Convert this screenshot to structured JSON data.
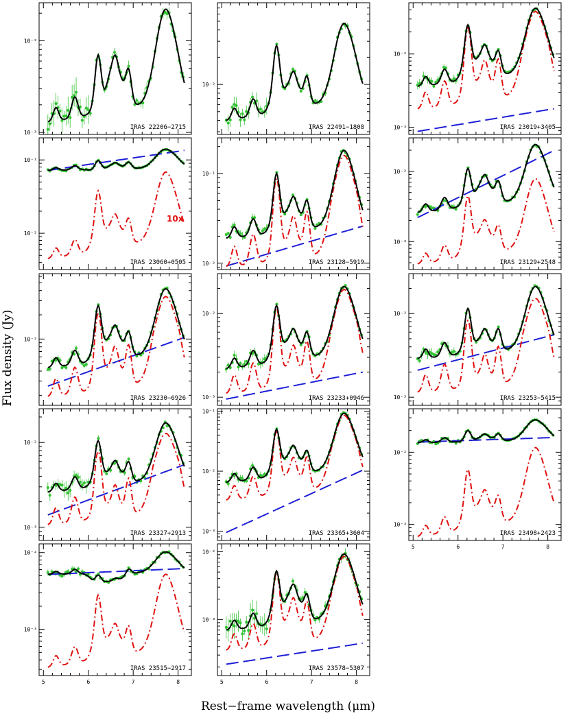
{
  "figure": {
    "xlabel": "Rest−frame wavelength (μm)",
    "ylabel": "Flux density (Jy)"
  },
  "colors": {
    "model": "#000000",
    "data": "#33c233",
    "continuum": "#1f1fd6",
    "pah": "#e01010",
    "note": "#e01010"
  },
  "chart_data": [
    {
      "type": "line",
      "name": "IRAS 22206−2715",
      "xlim": [
        4.95,
        8.25
      ],
      "ylog": true,
      "ylim": [
        0.00095,
        0.026
      ],
      "yticks": [
        {
          "v": 0.001,
          "label": "10⁻³"
        },
        {
          "v": 0.01,
          "label": "10⁻²"
        }
      ],
      "peak": 0.022,
      "lev": {
        "c": 0.007,
        "s": 0.0065,
        "b": 0.0013,
        "e": 0.0022
      },
      "cont": null,
      "pahScale": null,
      "scatter": 0.12,
      "err": 0.22,
      "xtick": false,
      "note": ""
    },
    {
      "type": "line",
      "name": "IRAS 22491−1808",
      "xlim": [
        4.95,
        8.25
      ],
      "ylog": true,
      "ylim": [
        0.0028,
        0.08
      ],
      "yticks": [
        {
          "v": 0.01,
          "label": "10⁻²"
        }
      ],
      "peak": 0.047,
      "lev": {
        "c": 0.027,
        "s": 0.013,
        "b": 0.004,
        "e": 0.007
      },
      "cont": null,
      "pahScale": null,
      "scatter": 0.08,
      "err": 0.12,
      "xtick": false,
      "note": ""
    },
    {
      "type": "line",
      "name": "IRAS 23019+3405",
      "xlim": [
        4.95,
        8.25
      ],
      "ylog": true,
      "ylim": [
        0.0008,
        0.05
      ],
      "yticks": [
        {
          "v": 0.001,
          "label": "10⁻³"
        },
        {
          "v": 0.01,
          "label": "10⁻²"
        }
      ],
      "peak": 0.042,
      "lev": {
        "c": 0.025,
        "s": 0.0125,
        "b": 0.0036,
        "e": 0.006
      },
      "cont": [
        0.00088,
        0.0018
      ],
      "pahScale": 0.9,
      "scatter": 0.06,
      "err": 0.08,
      "xtick": false,
      "note": ""
    },
    {
      "type": "line",
      "name": "IRAS 23060+0505",
      "xlim": [
        4.95,
        8.25
      ],
      "ylog": true,
      "ylim": [
        0.0032,
        0.2
      ],
      "yticks": [
        {
          "v": 0.01,
          "label": "10⁻²"
        },
        {
          "v": 0.1,
          "label": "10⁻¹"
        }
      ],
      "peak": 0.14,
      "lev": {
        "c": 0.098,
        "s": 0.09,
        "b": 0.072,
        "e": 0.078
      },
      "cont": [
        0.072,
        0.135
      ],
      "pahScale": 0.068,
      "scatter": 0.02,
      "err": 0.02,
      "xtick": false,
      "note": "10x",
      "pah": {
        "peak": 0.068,
        "c": 0.038,
        "s": 0.017,
        "b": 0.0045,
        "e": 0.009
      }
    },
    {
      "type": "line",
      "name": "IRAS 23128−5919",
      "xlim": [
        4.95,
        8.25
      ],
      "ylog": true,
      "ylim": [
        0.0085,
        0.25
      ],
      "yticks": [
        {
          "v": 0.01,
          "label": "10⁻²"
        },
        {
          "v": 0.1,
          "label": "10⁻¹"
        }
      ],
      "peak": 0.18,
      "lev": {
        "c": 0.1,
        "s": 0.052,
        "b": 0.019,
        "e": 0.027
      },
      "cont": [
        0.0093,
        0.026
      ],
      "pahScale": 0.88,
      "scatter": 0.06,
      "err": 0.06,
      "xtick": false,
      "note": ""
    },
    {
      "type": "line",
      "name": "IRAS 23129+2548",
      "xlim": [
        4.95,
        8.25
      ],
      "ylog": true,
      "ylim": [
        0.0004,
        0.03
      ],
      "yticks": [
        {
          "v": 0.001,
          "label": "10⁻³"
        },
        {
          "v": 0.01,
          "label": "10⁻²"
        }
      ],
      "peak": 0.024,
      "lev": {
        "c": 0.011,
        "s": 0.0085,
        "b": 0.0026,
        "e": 0.0042
      },
      "cont": [
        0.0022,
        0.02
      ],
      "pahScale": 0.4,
      "scatter": 0.06,
      "err": 0.06,
      "xtick": false,
      "note": "",
      "pah": {
        "peak": 0.0078,
        "c": 0.0045,
        "s": 0.0019,
        "b": 0.00048,
        "e": 0.0009
      }
    },
    {
      "type": "line",
      "name": "IRAS 23230−6926",
      "xlim": [
        4.95,
        8.25
      ],
      "ylog": true,
      "ylim": [
        0.0015,
        0.065
      ],
      "yticks": [
        {
          "v": 0.01,
          "label": "10⁻²"
        }
      ],
      "peak": 0.042,
      "lev": {
        "c": 0.026,
        "s": 0.014,
        "b": 0.0044,
        "e": 0.007
      },
      "cont": [
        0.0026,
        0.0105
      ],
      "pahScale": 0.8,
      "scatter": 0.06,
      "err": 0.06,
      "xtick": false,
      "note": ""
    },
    {
      "type": "line",
      "name": "IRAS 23233+0946",
      "xlim": [
        4.95,
        8.25
      ],
      "ylog": true,
      "ylim": [
        0.0008,
        0.03
      ],
      "yticks": [
        {
          "v": 0.001,
          "label": "10⁻³"
        },
        {
          "v": 0.01,
          "label": "10⁻²"
        }
      ],
      "peak": 0.021,
      "lev": {
        "c": 0.0125,
        "s": 0.0062,
        "b": 0.0022,
        "e": 0.0035
      },
      "cont": [
        0.00095,
        0.002
      ],
      "pahScale": 0.92,
      "scatter": 0.06,
      "err": 0.08,
      "xtick": false,
      "note": ""
    },
    {
      "type": "line",
      "name": "IRAS 23253−5415",
      "xlim": [
        4.95,
        8.25
      ],
      "ylog": true,
      "ylim": [
        0.0008,
        0.03
      ],
      "yticks": [
        {
          "v": 0.001,
          "label": "10⁻³"
        },
        {
          "v": 0.01,
          "label": "10⁻²"
        }
      ],
      "peak": 0.021,
      "lev": {
        "c": 0.0115,
        "s": 0.0062,
        "b": 0.0029,
        "e": 0.004
      },
      "cont": [
        0.0021,
        0.0056
      ],
      "pahScale": 0.72,
      "scatter": 0.06,
      "err": 0.08,
      "xtick": false,
      "note": ""
    },
    {
      "type": "line",
      "name": "IRAS 23327+2913",
      "xlim": [
        4.95,
        8.25
      ],
      "ylog": true,
      "ylim": [
        0.0007,
        0.025
      ],
      "yticks": [
        {
          "v": 0.001,
          "label": "10⁻³"
        },
        {
          "v": 0.01,
          "label": "10⁻²"
        }
      ],
      "peak": 0.017,
      "lev": {
        "c": 0.0105,
        "s": 0.0058,
        "b": 0.0026,
        "e": 0.0039
      },
      "cont": [
        0.0014,
        0.0055
      ],
      "pahScale": 0.75,
      "scatter": 0.1,
      "err": 0.12,
      "xtick": false,
      "note": ""
    },
    {
      "type": "line",
      "name": "IRAS 23365+3604",
      "xlim": [
        4.95,
        8.25
      ],
      "ylog": true,
      "ylim": [
        0.0007,
        0.11
      ],
      "yticks": [
        {
          "v": 0.001,
          "label": "10⁻³"
        },
        {
          "v": 0.01,
          "label": "10⁻²"
        },
        {
          "v": 0.1,
          "label": "10⁻¹"
        }
      ],
      "peak": 0.092,
      "lev": {
        "c": 0.05,
        "s": 0.025,
        "b": 0.0065,
        "e": 0.0115
      },
      "cont": [
        0.00095,
        0.0105
      ],
      "pahScale": 0.92,
      "scatter": 0.06,
      "err": 0.08,
      "xtick": false,
      "note": ""
    },
    {
      "type": "line",
      "name": "IRAS 23498+2423",
      "xlim": [
        4.95,
        8.25
      ],
      "ylog": true,
      "ylim": [
        0.0006,
        0.04
      ],
      "yticks": [
        {
          "v": 0.001,
          "label": "10⁻³"
        },
        {
          "v": 0.01,
          "label": "10⁻²"
        }
      ],
      "peak": 0.028,
      "lev": {
        "c": 0.02,
        "s": 0.0175,
        "b": 0.0135,
        "e": 0.0148
      },
      "cont": [
        0.0138,
        0.016
      ],
      "pahScale": 0.4,
      "scatter": 0.03,
      "err": 0.03,
      "xtick": true,
      "note": "",
      "pah": {
        "peak": 0.0115,
        "c": 0.0058,
        "s": 0.0028,
        "b": 0.00068,
        "e": 0.0013
      }
    },
    {
      "type": "line",
      "name": "IRAS 23515−2917",
      "xlim": [
        4.95,
        8.25
      ],
      "ylog": true,
      "ylim": [
        0.00025,
        0.013
      ],
      "yticks": [
        {
          "v": 0.001,
          "label": "10⁻³"
        },
        {
          "v": 0.01,
          "label": "10⁻²"
        }
      ],
      "peak": 0.0102,
      "lev": {
        "c": 0.0051,
        "s": 0.0045,
        "b": 0.0052,
        "e": 0.0056
      },
      "cont": [
        0.0052,
        0.0062
      ],
      "pahScale": 0.5,
      "scatter": 0.05,
      "err": 0.05,
      "xtick": true,
      "note": "",
      "pah": {
        "peak": 0.0052,
        "c": 0.0028,
        "s": 0.0011,
        "b": 0.00032,
        "e": 0.0006
      }
    },
    {
      "type": "line",
      "name": "IRAS 23578−5307",
      "xlim": [
        4.95,
        8.25
      ],
      "ylog": true,
      "ylim": [
        0.00015,
        0.013
      ],
      "yticks": [
        {
          "v": 0.001,
          "label": "10⁻³"
        },
        {
          "v": 0.01,
          "label": "10⁻²"
        }
      ],
      "peak": 0.0092,
      "lev": {
        "c": 0.0052,
        "s": 0.0031,
        "b": 0.0007,
        "e": 0.0011
      },
      "cont": [
        0.00022,
        0.00045
      ],
      "pahScale": 0.92,
      "scatter": 0.15,
      "err": 0.25,
      "xtick": true,
      "note": ""
    }
  ],
  "xticks": [
    {
      "v": 5,
      "label": "5"
    },
    {
      "v": 6,
      "label": "6"
    },
    {
      "v": 7,
      "label": "7"
    },
    {
      "v": 8,
      "label": "8"
    }
  ]
}
